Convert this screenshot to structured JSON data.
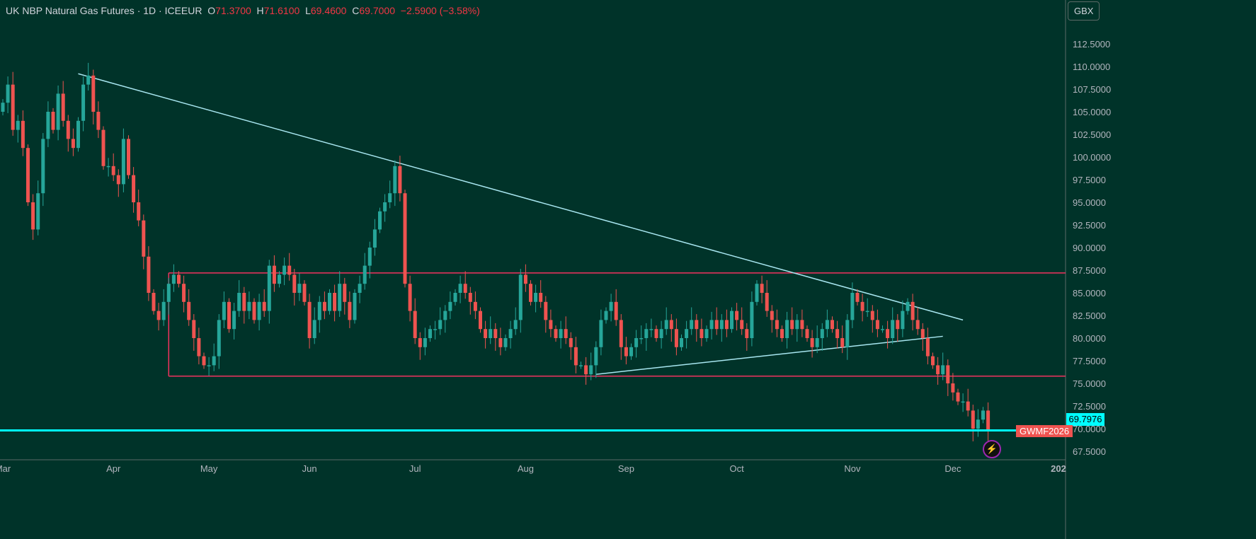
{
  "header": {
    "name": "UK NBP Natural Gas Futures · 1D · ICEEUR",
    "o_label": "O",
    "o": "71.3700",
    "h_label": "H",
    "h": "71.6100",
    "l_label": "L",
    "l": "69.4600",
    "c_label": "C",
    "c": "69.7000",
    "change": "−2.5900 (−3.58%)"
  },
  "currency": "GBX",
  "current_price": "69.7976",
  "symbol_tag": "GWMF2026",
  "colors": {
    "up": "#26a69a",
    "down": "#ef5350",
    "trend": "#a8e6f0",
    "range": "#f2325f",
    "support": "#00ffff"
  },
  "chart_data": {
    "type": "candlestick",
    "ylim": [
      66.5,
      114
    ],
    "yticks": [
      "67.5000",
      "70.0000",
      "72.5000",
      "75.0000",
      "77.5000",
      "80.0000",
      "82.5000",
      "85.0000",
      "87.5000",
      "90.0000",
      "92.5000",
      "95.0000",
      "97.5000",
      "100.0000",
      "102.5000",
      "105.0000",
      "107.5000",
      "110.0000",
      "112.5000"
    ],
    "months": [
      {
        "label": "Mar",
        "idx": 0
      },
      {
        "label": "Apr",
        "idx": 22
      },
      {
        "label": "May",
        "idx": 41
      },
      {
        "label": "Jun",
        "idx": 61
      },
      {
        "label": "Jul",
        "idx": 82
      },
      {
        "label": "Aug",
        "idx": 104
      },
      {
        "label": "Sep",
        "idx": 124
      },
      {
        "label": "Oct",
        "idx": 146
      },
      {
        "label": "Nov",
        "idx": 169
      },
      {
        "label": "Dec",
        "idx": 189
      },
      {
        "label": "202",
        "idx": 210
      }
    ],
    "closes": [
      106,
      108,
      103,
      104,
      101,
      95,
      92,
      96,
      102,
      105,
      103,
      107,
      104,
      102,
      101,
      104,
      108,
      109,
      105,
      103,
      99,
      99,
      98,
      97,
      102,
      98,
      95,
      93,
      89,
      85,
      83,
      82,
      84,
      86,
      87,
      86,
      84,
      82,
      80,
      78,
      77,
      77,
      78,
      82,
      84,
      81,
      83,
      85,
      83,
      84,
      82,
      84,
      83,
      88,
      86,
      87,
      88,
      87,
      85,
      86,
      84,
      80,
      82,
      84,
      83,
      85,
      83,
      86,
      84,
      82,
      85,
      86,
      88,
      90,
      92,
      94,
      95,
      96,
      99,
      96,
      86,
      83,
      80,
      79,
      80,
      81,
      81,
      82,
      83,
      84,
      85,
      86,
      85,
      84,
      83,
      81,
      80,
      81,
      80,
      79,
      80,
      81,
      82,
      87,
      86,
      84,
      85,
      84,
      82,
      81,
      80,
      81,
      80,
      79,
      77,
      77,
      76,
      77,
      79,
      82,
      83,
      84,
      82,
      79,
      78,
      79,
      80,
      80,
      81,
      81,
      80,
      81,
      82,
      81,
      79,
      80,
      81,
      82,
      81,
      80,
      81,
      82,
      81,
      82,
      81,
      83,
      82,
      81,
      80,
      84,
      86,
      85,
      83,
      82,
      81,
      80,
      82,
      81,
      82,
      81,
      80,
      79,
      80,
      81,
      82,
      81,
      80,
      79,
      82,
      85,
      84,
      83,
      83,
      82,
      81,
      81,
      80,
      82,
      81,
      83,
      84,
      82,
      81,
      80,
      78,
      77,
      76,
      77,
      75,
      74,
      73,
      73,
      72,
      70,
      71,
      72,
      69.7
    ],
    "first_open": 105,
    "lines": [
      {
        "name": "upper-trendline",
        "from": [
          15,
          109.2
        ],
        "to": [
          191,
          82.0
        ]
      },
      {
        "name": "lower-trendline",
        "from": [
          118,
          76.0
        ],
        "to": [
          187,
          80.2
        ]
      }
    ],
    "range": {
      "top": 87.2,
      "bottom": 75.8,
      "start_idx": 33
    },
    "support": 69.8
  }
}
